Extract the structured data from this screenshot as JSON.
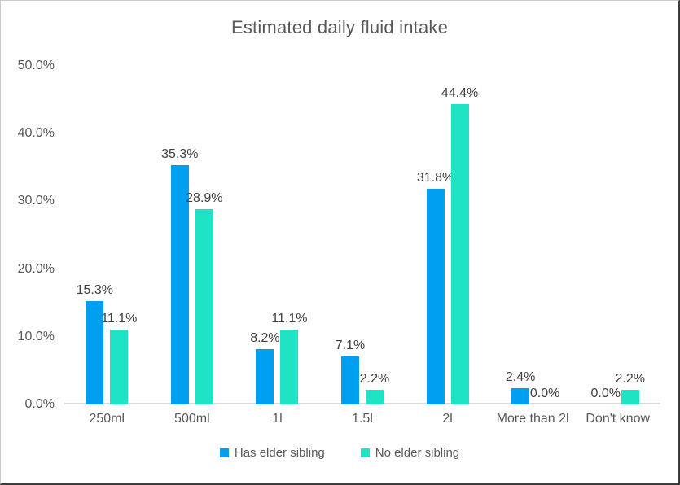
{
  "chart_data": {
    "type": "bar",
    "title": "Estimated daily fluid intake",
    "categories": [
      "250ml",
      "500ml",
      "1l",
      "1.5l",
      "2l",
      "More than 2l",
      "Don't know"
    ],
    "series": [
      {
        "name": "Has elder sibling",
        "color": "#009FF0",
        "values": [
          15.3,
          35.3,
          8.2,
          7.1,
          31.8,
          2.4,
          0.0
        ],
        "labels": [
          "15.3%",
          "35.3%",
          "8.2%",
          "7.1%",
          "31.8%",
          "2.4%",
          "0.0%"
        ]
      },
      {
        "name": "No elder sibling",
        "color": "#1EE3C5",
        "values": [
          11.1,
          28.9,
          11.1,
          2.2,
          44.4,
          0.0,
          2.2
        ],
        "labels": [
          "11.1%",
          "28.9%",
          "11.1%",
          "2.2%",
          "44.4%",
          "0.0%",
          "2.2%"
        ]
      }
    ],
    "ylim": [
      0,
      50
    ],
    "y_ticks": [
      {
        "value": 0,
        "label": "0.0%"
      },
      {
        "value": 10,
        "label": "10.0%"
      },
      {
        "value": 20,
        "label": "20.0%"
      },
      {
        "value": 30,
        "label": "30.0%"
      },
      {
        "value": 40,
        "label": "40.0%"
      },
      {
        "value": 50,
        "label": "50.0%"
      }
    ],
    "grid": false,
    "legend_position": "bottom",
    "colors": {
      "title_text": "#595959",
      "axis_text": "#595959",
      "data_label_text": "#404040",
      "axis_line": "#d9d9d9"
    }
  }
}
